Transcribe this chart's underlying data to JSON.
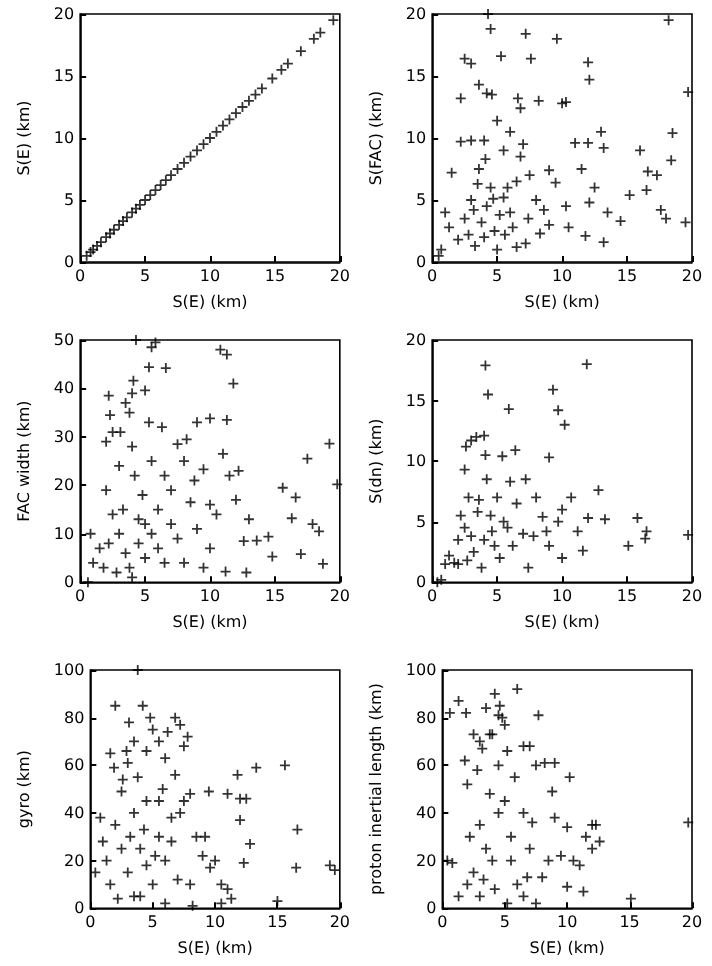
{
  "chart_data": [
    {
      "type": "scatter",
      "xlabel": "S(E) (km)",
      "ylabel": "S(E) (km)",
      "xlim": [
        0,
        20
      ],
      "ylim": [
        0,
        20
      ],
      "xticks": [
        0,
        5,
        10,
        15,
        20
      ],
      "yticks": [
        0,
        5,
        10,
        15,
        20
      ],
      "marker": "cross",
      "series": [
        {
          "color": "#000000",
          "x": [
            0.5,
            0.8,
            1,
            1.3,
            1.6,
            2,
            2.3,
            2.6,
            3,
            3.3,
            3.6,
            4,
            4.3,
            4.6,
            5,
            5.4,
            5.8,
            6.2,
            6.6,
            7,
            7.5,
            8,
            8.5,
            9,
            9.5,
            10,
            10.5,
            11,
            11.5,
            12,
            12.5,
            13,
            13.5,
            14,
            14.8,
            15.5,
            16,
            17,
            18,
            18.5,
            19.5
          ],
          "values": [
            0.5,
            0.8,
            1,
            1.3,
            1.6,
            2,
            2.3,
            2.6,
            3,
            3.3,
            3.6,
            4,
            4.3,
            4.6,
            5,
            5.4,
            5.8,
            6.2,
            6.6,
            7,
            7.5,
            8,
            8.5,
            9,
            9.5,
            10,
            10.5,
            11,
            11.5,
            12,
            12.5,
            13,
            13.5,
            14,
            14.8,
            15.5,
            16,
            17,
            18,
            18.5,
            19.5
          ]
        }
      ]
    },
    {
      "type": "scatter",
      "xlabel": "S(E) (km)",
      "ylabel": "S(FAC) (km)",
      "xlim": [
        0,
        20
      ],
      "ylim": [
        0,
        20
      ],
      "xticks": [
        0,
        5,
        10,
        15,
        20
      ],
      "yticks": [
        0,
        5,
        10,
        15,
        20
      ],
      "marker": "cross",
      "series": [
        {
          "color": "#000000",
          "x": [
            2.5,
            3,
            4.3,
            4.5,
            3.6,
            4.2,
            4.6,
            2.2,
            5.3,
            6.6,
            6.8,
            7.2,
            7.6,
            8.2,
            9.6,
            10,
            10.3,
            12,
            12.1,
            18.2,
            19.7,
            18.5,
            18.4,
            16,
            16.6,
            17.3,
            17.6,
            18,
            19.5,
            15.2,
            14.5,
            13.2,
            13.2,
            13,
            12,
            11,
            11.5,
            12.5,
            12.1,
            13.5,
            11.8,
            10.3,
            9.5,
            9,
            9,
            8.6,
            8,
            7.5,
            7,
            6.8,
            6,
            5.5,
            5,
            4,
            3,
            2.2,
            1.5,
            1,
            1.3,
            0.7,
            0.5,
            2,
            2.5,
            3,
            3.5,
            3.8,
            4.2,
            4.5,
            4.8,
            5.2,
            5.5,
            6,
            6.2,
            6.5,
            5,
            6.5,
            7.2,
            3.3,
            2.8,
            3.6,
            4.1,
            4.7,
            5.8,
            7.4,
            8.3,
            10.5,
            16.5,
            3.2,
            4,
            5.6
          ],
          "values": [
            16.4,
            16,
            20,
            18.8,
            14.3,
            13.6,
            13.5,
            13.2,
            16.6,
            13.2,
            12.4,
            18.4,
            16.4,
            13,
            18,
            12.8,
            12.9,
            16.1,
            14.7,
            19.5,
            13.7,
            10.4,
            8.2,
            9,
            7.3,
            7,
            4.2,
            3.5,
            3.2,
            5.4,
            3.3,
            1.6,
            9.2,
            10.5,
            9.6,
            9.6,
            7.5,
            6,
            4.8,
            4,
            2.1,
            4.5,
            6.4,
            7.4,
            3,
            4.2,
            5,
            7,
            9.5,
            8.5,
            10.5,
            9,
            11.4,
            9.8,
            9.8,
            9.7,
            7.2,
            4,
            2.8,
            1,
            0.5,
            1.8,
            3.5,
            5,
            6.3,
            3.2,
            4.5,
            6,
            2.5,
            3.8,
            5.2,
            4,
            2.8,
            6.5,
            1,
            1.2,
            1.5,
            1.3,
            2.2,
            7.5,
            8.3,
            5.1,
            6,
            3.5,
            2.3,
            2.8,
            5.8,
            4.2,
            2,
            2.2
          ]
        }
      ]
    },
    {
      "type": "scatter",
      "xlabel": "S(E) (km)",
      "ylabel": "FAC width (km)",
      "xlim": [
        0,
        20
      ],
      "ylim": [
        0,
        50
      ],
      "xticks": [
        0,
        5,
        10,
        15,
        20
      ],
      "yticks": [
        0,
        10,
        20,
        30,
        40,
        50
      ],
      "marker": "cross",
      "series": [
        {
          "color": "#000000",
          "x": [
            0.6,
            1,
            0.8,
            2.2,
            2.5,
            2,
            2.3,
            3.1,
            3.5,
            3.8,
            4,
            4.1,
            4.3,
            5.5,
            5.8,
            5.3,
            6.6,
            5,
            5.3,
            6.3,
            7.5,
            8.2,
            9,
            10,
            8,
            9.5,
            10.8,
            11.3,
            11.8,
            11.3,
            11,
            11.5,
            12.2,
            12,
            13,
            12.6,
            13.6,
            14.8,
            14.5,
            15.6,
            16.3,
            16.6,
            17.5,
            17.9,
            18.4,
            18.7,
            17,
            19.2,
            19.8,
            12.8,
            11.2,
            10,
            9,
            8.5,
            7,
            6,
            5,
            4.5,
            3.5,
            3,
            2.5,
            2,
            1.5,
            1.8,
            2.8,
            3.8,
            4.2,
            4.8,
            5.5,
            6.5,
            3,
            4,
            5,
            6,
            7.5,
            8,
            9.5,
            10.5,
            7,
            3.3,
            4.5,
            5.5,
            6.5,
            2.2,
            4,
            8.8,
            10
          ],
          "values": [
            0,
            4,
            10,
            38.5,
            31,
            29,
            34.5,
            31,
            37,
            35,
            39,
            41.6,
            50,
            48.5,
            49.5,
            44.4,
            44.2,
            39.6,
            33,
            32,
            28.5,
            29.5,
            33,
            33.8,
            25,
            23.3,
            48,
            47,
            41,
            33.5,
            26.5,
            22,
            23,
            17,
            13,
            8.5,
            8.6,
            5.3,
            9.4,
            19.5,
            13.2,
            17.5,
            25.5,
            12,
            10.5,
            3.8,
            5.8,
            28.6,
            20.2,
            2,
            2.2,
            7,
            11,
            16.5,
            19,
            15,
            12,
            8,
            6,
            10,
            14,
            19,
            7,
            3,
            2,
            3,
            22,
            18,
            25,
            22,
            24,
            28,
            5,
            7,
            9,
            4,
            3,
            14,
            12,
            15,
            13,
            10,
            4,
            8,
            1,
            21,
            16
          ]
        }
      ]
    },
    {
      "type": "scatter",
      "xlabel": "S(E) (km)",
      "ylabel": "S(dn) (km)",
      "xlim": [
        0,
        20
      ],
      "ylim": [
        0,
        20
      ],
      "xticks": [
        0,
        5,
        10,
        15,
        20
      ],
      "yticks": [
        0,
        5,
        10,
        15,
        20
      ],
      "marker": "cross",
      "series": [
        {
          "color": "#000000",
          "x": [
            0.4,
            0.7,
            1,
            1.3,
            1.7,
            2,
            2.2,
            2.5,
            2.6,
            3,
            3.4,
            4,
            4.1,
            4.3,
            4.1,
            5.4,
            5.9,
            6.4,
            7.2,
            9,
            9.3,
            9.7,
            10.2,
            11.9,
            12.8,
            13.3,
            15.1,
            15.8,
            16.5,
            16.4,
            19.7,
            11.6,
            12,
            11.2,
            10.7,
            10,
            10,
            9.7,
            9,
            8.5,
            8,
            7.4,
            7,
            6.5,
            6,
            5.5,
            5,
            4.8,
            4.5,
            4,
            3.8,
            3.5,
            3,
            2.8,
            2.5,
            2,
            3.2,
            4.2,
            5.2,
            6.2,
            7.8,
            3.6,
            4.6,
            5.8,
            2.7,
            8.8
          ],
          "values": [
            0,
            0.2,
            1.5,
            2.2,
            1.6,
            3.5,
            5.5,
            9.3,
            11.2,
            11.7,
            12,
            12.1,
            17.9,
            15.5,
            10.5,
            10.4,
            14.3,
            10.9,
            8.5,
            10.3,
            15.9,
            14.2,
            13,
            18,
            7.6,
            5.2,
            3,
            5.3,
            4.2,
            3.6,
            3.9,
            2.6,
            5.3,
            4.2,
            7,
            6,
            2,
            5,
            3,
            5.4,
            7,
            1.2,
            4,
            6.5,
            8.3,
            5,
            7,
            3,
            5.5,
            3.5,
            1.2,
            5.8,
            3.8,
            7,
            4.5,
            1.5,
            2.5,
            8.5,
            2,
            3,
            3.8,
            6.8,
            4.2,
            4.5,
            1.8,
            4.2
          ]
        }
      ]
    },
    {
      "type": "scatter",
      "xlabel": "S(E) (km)",
      "ylabel": "gyro (km)",
      "xlim": [
        0,
        20
      ],
      "ylim": [
        0,
        100
      ],
      "xticks": [
        0,
        5,
        10,
        15,
        20
      ],
      "yticks": [
        0,
        20,
        40,
        60,
        80,
        100
      ],
      "marker": "cross",
      "series": [
        {
          "color": "#000000",
          "x": [
            0.4,
            0.8,
            1,
            1.3,
            1.6,
            1.6,
            1.9,
            2,
            2.5,
            2.6,
            2.9,
            3,
            3.1,
            3.5,
            3.8,
            4.2,
            4.5,
            4.8,
            5,
            5.5,
            6.2,
            6.8,
            7.2,
            7.8,
            7.5,
            6.8,
            6,
            5.5,
            4.5,
            3.5,
            2,
            2.5,
            3,
            3.5,
            4,
            4.5,
            5,
            5.5,
            6,
            6.5,
            7,
            7.5,
            8,
            8.5,
            9,
            9.5,
            10,
            10.5,
            10.5,
            11,
            11,
            11.3,
            11.8,
            12,
            12,
            12.3,
            12.5,
            12.8,
            13.3,
            15,
            15.6,
            16.6,
            16.5,
            19.2,
            19.6,
            8.2,
            9.2,
            6,
            4,
            2.2,
            3.2,
            4.3,
            5.2,
            6.5,
            7.2,
            8,
            9.6,
            5.8,
            3.8
          ],
          "values": [
            15,
            38,
            28,
            20,
            10,
            65,
            59,
            85,
            49,
            54,
            66,
            61,
            78,
            70,
            100,
            85,
            66,
            80,
            75,
            70,
            74,
            80,
            77,
            72,
            68,
            56,
            63,
            45,
            45,
            40,
            35,
            25,
            15,
            5,
            25,
            18,
            10,
            30,
            20,
            38,
            12,
            45,
            48,
            30,
            22,
            49,
            20,
            10,
            2,
            48,
            8,
            4,
            56,
            46,
            37,
            19,
            46,
            27,
            59,
            3,
            60,
            33,
            17,
            18,
            16,
            1,
            30,
            2,
            5,
            4,
            30,
            33,
            22,
            28,
            40,
            10,
            17,
            50,
            55
          ]
        }
      ]
    },
    {
      "type": "scatter",
      "xlabel": "S(E) (km)",
      "ylabel": "proton inertial length (km)",
      "xlim": [
        0,
        20
      ],
      "ylim": [
        0,
        100
      ],
      "xticks": [
        0,
        5,
        10,
        15,
        20
      ],
      "yticks": [
        0,
        20,
        40,
        60,
        80,
        100
      ],
      "marker": "cross",
      "series": [
        {
          "color": "#000000",
          "x": [
            0.4,
            0.8,
            0.6,
            1.3,
            1.9,
            1.3,
            1.8,
            2,
            2.5,
            2.8,
            3,
            3.2,
            3.5,
            3.8,
            4,
            4.2,
            4.5,
            4.6,
            4.8,
            5,
            5.2,
            5.8,
            6,
            6.5,
            7,
            7.7,
            7.5,
            8.2,
            9,
            8.8,
            9,
            10.2,
            10,
            10,
            10.5,
            11,
            11.3,
            11.5,
            12,
            12.3,
            12.6,
            12,
            15.1,
            19.7,
            8,
            7.5,
            6.5,
            6,
            5.5,
            5,
            4.5,
            4,
            3.5,
            3,
            2.5,
            2,
            2.2,
            3,
            3.8,
            4.5,
            5.5,
            6.5,
            7,
            8.5,
            9.5,
            3.3,
            4.2,
            5.2,
            6.8,
            7.2
          ],
          "values": [
            20,
            19,
            82,
            87,
            82,
            5,
            62,
            52,
            73,
            58,
            70,
            67,
            84,
            73,
            73,
            90,
            81,
            85,
            80,
            77,
            66,
            55,
            92,
            68,
            68,
            81,
            60,
            61,
            61,
            49,
            38,
            55,
            34,
            9,
            20,
            18,
            7,
            30,
            35,
            35,
            28,
            25,
            4,
            36,
            13,
            2,
            5,
            10,
            30,
            45,
            40,
            20,
            25,
            35,
            15,
            10,
            30,
            5,
            48,
            60,
            20,
            40,
            25,
            20,
            22,
            12,
            8,
            2,
            13,
            36
          ]
        }
      ]
    }
  ]
}
